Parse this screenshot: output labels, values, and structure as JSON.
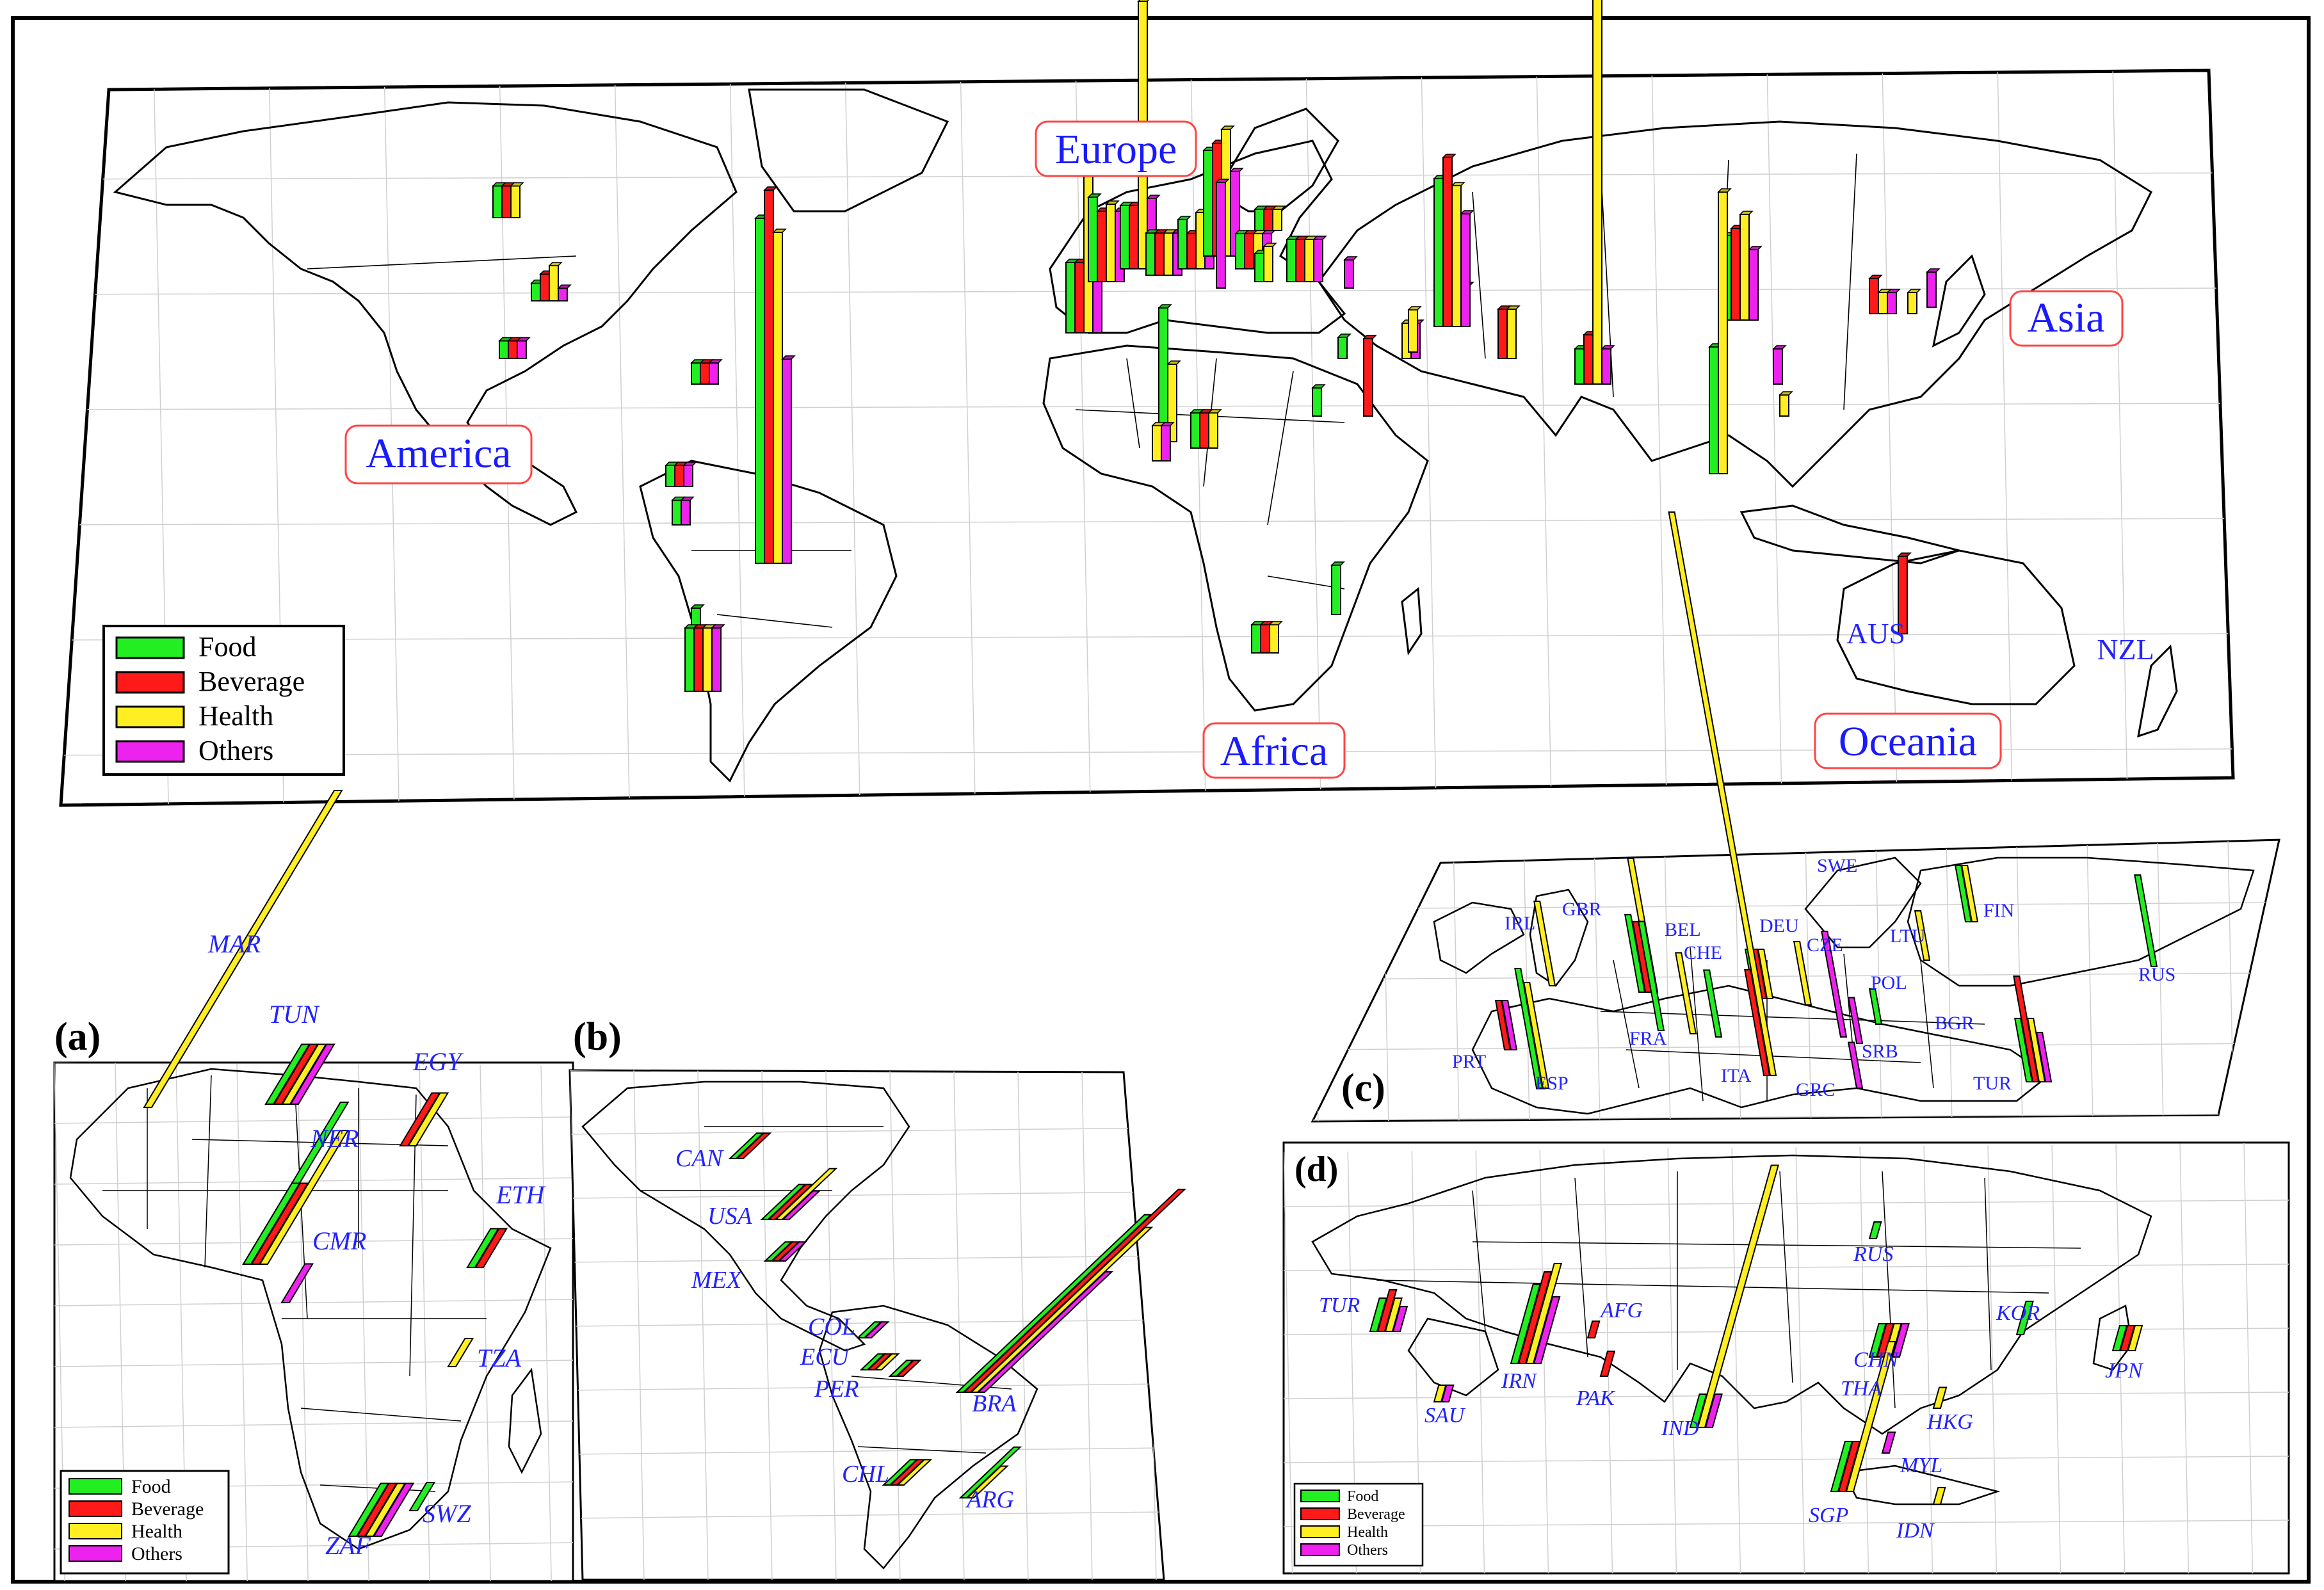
{
  "colors": {
    "Food": "#22ee22",
    "Beverage": "#ff1a1a",
    "Health": "#ffee22",
    "Others": "#ee22ee",
    "label": "#2222ff",
    "region_border": "#ff4444",
    "map_line": "#000000",
    "grid": "#d0d0d0"
  },
  "legend": [
    "Food",
    "Beverage",
    "Health",
    "Others"
  ],
  "main": {
    "regions": [
      "America",
      "Europe",
      "Asia",
      "Africa",
      "Oceania"
    ],
    "country_labels": [
      "AUS",
      "NZL"
    ],
    "bar_groups": [
      {
        "values": [
          0.45,
          0.45,
          0.45,
          0
        ]
      },
      {
        "values": [
          0.25,
          0.38,
          0.5,
          0.18
        ]
      },
      {
        "values": [
          0.25,
          0.25,
          0,
          0.25
        ]
      },
      {
        "values": [
          0.3,
          0.3,
          0,
          0.3
        ]
      },
      {
        "values": [
          0.3,
          0.3,
          0,
          0.3
        ]
      },
      {
        "values": [
          0.35,
          0,
          0,
          0.35
        ]
      },
      {
        "values": [
          4.9,
          5.3,
          4.7,
          2.9
        ]
      },
      {
        "values": [
          1.0,
          0,
          0.3,
          0
        ]
      },
      {
        "values": [
          0.9,
          0.9,
          0.9,
          0.9
        ]
      },
      {
        "values": [
          1.0,
          1.0,
          2.4,
          1.0
        ]
      },
      {
        "values": [
          1.2,
          1.0,
          1.1,
          1.0
        ]
      },
      {
        "values": [
          0.9,
          0.9,
          3.8,
          1.0
        ]
      },
      {
        "values": [
          0.6,
          0.6,
          0.6,
          0.6
        ]
      },
      {
        "values": [
          0.7,
          0.5,
          0.8,
          0.6
        ]
      },
      {
        "values": [
          1.5,
          1.6,
          1.8,
          1.2
        ]
      },
      {
        "values": [
          0.5,
          0.5,
          0.5,
          0.5
        ]
      },
      {
        "values": [
          0.3,
          0.3,
          0.3,
          0
        ]
      },
      {
        "values": [
          1.9,
          0,
          1.1,
          0
        ]
      },
      {
        "values": [
          0,
          0,
          0.5,
          0.5
        ]
      },
      {
        "values": [
          0.5,
          0.5,
          0.5,
          0
        ]
      },
      {
        "values": [
          0,
          0,
          0,
          1.5
        ]
      },
      {
        "values": [
          0.4,
          0,
          0.5,
          0
        ]
      },
      {
        "values": [
          0.6,
          0.6,
          0.6,
          0.6
        ]
      },
      {
        "values": [
          0.4,
          0,
          0,
          0
        ]
      },
      {
        "values": [
          0.3,
          0,
          0,
          0
        ]
      },
      {
        "values": [
          0,
          0,
          0,
          0.4
        ]
      },
      {
        "values": [
          0,
          1.1,
          0,
          0
        ]
      },
      {
        "values": [
          0.7,
          0,
          0,
          0
        ]
      },
      {
        "values": [
          0.4,
          0.4,
          0.4,
          0
        ]
      },
      {
        "values": [
          0,
          0,
          0.5,
          0.5
        ]
      },
      {
        "values": [
          0.4,
          0.5,
          0.6,
          0.4
        ]
      },
      {
        "values": [
          0,
          0,
          0.6,
          0
        ]
      },
      {
        "values": [
          2.1,
          2.4,
          2.0,
          1.6
        ]
      },
      {
        "values": [
          0,
          0.7,
          0.7,
          0
        ]
      },
      {
        "values": [
          0.5,
          0.7,
          5.6,
          0.5
        ]
      },
      {
        "values": [
          0.6,
          0,
          0,
          0
        ]
      },
      {
        "values": [
          1.2,
          1.3,
          1.5,
          1.0
        ]
      },
      {
        "values": [
          1.8,
          0,
          4.0,
          0
        ]
      },
      {
        "values": [
          0,
          0,
          0,
          0.5
        ]
      },
      {
        "values": [
          0,
          0,
          0.3,
          0
        ]
      },
      {
        "values": [
          0,
          0.5,
          0.3,
          0.3
        ]
      },
      {
        "values": [
          0,
          0,
          0.3,
          0
        ]
      },
      {
        "values": [
          0,
          0,
          0,
          0.5
        ]
      },
      {
        "values": [
          0,
          1.1,
          0,
          0
        ]
      }
    ]
  },
  "panel_a": {
    "letter": "(a)",
    "country_labels": [
      "MAR",
      "TUN",
      "EGY",
      "NER",
      "ETH",
      "CMR",
      "TZA",
      "SWZ",
      "ZAF"
    ],
    "bar_groups": [
      {
        "values": [
          0,
          0,
          9.0,
          0
        ]
      },
      {
        "values": [
          1.7,
          1.7,
          1.7,
          1.7
        ]
      },
      {
        "values": [
          0,
          1.5,
          1.5,
          0
        ]
      },
      {
        "values": [
          4.6,
          0,
          0,
          0
        ]
      },
      {
        "values": [
          2.3,
          2.3,
          3.8,
          0
        ]
      },
      {
        "values": [
          1.1,
          1.1,
          0,
          0
        ]
      },
      {
        "values": [
          0,
          0,
          0,
          1.1
        ]
      },
      {
        "values": [
          0,
          0,
          0.8,
          0
        ]
      },
      {
        "values": [
          0.8,
          0,
          0,
          0
        ]
      },
      {
        "values": [
          1.5,
          1.5,
          1.5,
          1.5
        ]
      }
    ]
  },
  "panel_b": {
    "letter": "(b)",
    "country_labels": [
      "CAN",
      "USA",
      "MEX",
      "COL",
      "ECU",
      "PER",
      "BRA",
      "CHL",
      "ARG"
    ],
    "bar_groups": [
      {
        "values": [
          0.8,
          0.8,
          0,
          0
        ]
      },
      {
        "values": [
          1.1,
          1.1,
          1.6,
          0.9
        ]
      },
      {
        "values": [
          0.6,
          0.6,
          0,
          0.6
        ]
      },
      {
        "values": [
          0.5,
          0,
          0,
          0.5
        ]
      },
      {
        "values": [
          0.5,
          0.5,
          0.5,
          0
        ]
      },
      {
        "values": [
          0.5,
          0.5,
          0,
          0
        ]
      },
      {
        "values": [
          5.6,
          6.4,
          5.2,
          3.8
        ]
      },
      {
        "values": [
          0.8,
          0.8,
          0.8,
          0
        ]
      },
      {
        "values": [
          1.6,
          0,
          1.0,
          0
        ]
      }
    ]
  },
  "panel_c": {
    "letter": "(c)",
    "country_labels": [
      "SWE",
      "IRL",
      "GBR",
      "BEL",
      "DEU",
      "CZE",
      "LTU",
      "FIN",
      "RUS",
      "CHE",
      "POL",
      "FRA",
      "BGR",
      "PRT",
      "ESP",
      "ITA",
      "SRB",
      "GRC",
      "TUR"
    ],
    "bar_groups": [
      {
        "values": [
          0,
          0,
          0,
          3.0
        ]
      },
      {
        "values": [
          0,
          0,
          2.4,
          0
        ]
      },
      {
        "values": [
          2.2,
          2.0,
          3.8,
          0
        ]
      },
      {
        "values": [
          0,
          0,
          2.3,
          0
        ]
      },
      {
        "values": [
          1.4,
          1.4,
          1.4,
          0
        ]
      },
      {
        "values": [
          0,
          0,
          1.8,
          0
        ]
      },
      {
        "values": [
          0,
          0,
          1.4,
          0
        ]
      },
      {
        "values": [
          1.6,
          0,
          1.6,
          0
        ]
      },
      {
        "values": [
          2.6,
          0,
          0,
          0
        ]
      },
      {
        "values": [
          1.9,
          0,
          0,
          0
        ]
      },
      {
        "values": [
          1.0,
          0,
          0,
          0
        ]
      },
      {
        "values": [
          3.1,
          0,
          0,
          0
        ]
      },
      {
        "values": [
          0,
          0,
          0,
          1.3
        ]
      },
      {
        "values": [
          0,
          1.4,
          0,
          1.4
        ]
      },
      {
        "values": [
          3.4,
          0,
          3.0,
          0
        ]
      },
      {
        "values": [
          0,
          3.0,
          16.0,
          0
        ]
      },
      {
        "values": [
          0,
          0,
          0,
          1.3
        ]
      },
      {
        "values": [
          1.8,
          3.0,
          1.8,
          1.4
        ]
      }
    ]
  },
  "panel_d": {
    "letter": "(d)",
    "country_labels": [
      "RUS",
      "TUR",
      "IRN",
      "AFG",
      "PAK",
      "SAU",
      "IND",
      "CHN",
      "THA",
      "KOR",
      "JPN",
      "HKG",
      "MYL",
      "SGP",
      "IDN"
    ],
    "bar_groups": [
      {
        "values": [
          0.4,
          0,
          0,
          0
        ]
      },
      {
        "values": [
          0.8,
          1.0,
          0.8,
          0.6
        ]
      },
      {
        "values": [
          1.9,
          2.2,
          2.4,
          1.6
        ]
      },
      {
        "values": [
          0,
          0.4,
          0,
          0
        ]
      },
      {
        "values": [
          0,
          0.6,
          0,
          0
        ]
      },
      {
        "values": [
          0,
          0,
          0.4,
          0.4
        ]
      },
      {
        "values": [
          0.8,
          0,
          6.3,
          0.8
        ]
      },
      {
        "values": [
          0.8,
          0.8,
          0.8,
          0.8
        ]
      },
      {
        "values": [
          1.2,
          1.2,
          3.6,
          0
        ]
      },
      {
        "values": [
          0.8,
          0,
          0,
          0
        ]
      },
      {
        "values": [
          0.6,
          0.6,
          0.6,
          0
        ]
      },
      {
        "values": [
          0,
          0,
          0.5,
          0
        ]
      },
      {
        "values": [
          0,
          0,
          0,
          0.5
        ]
      },
      {
        "values": [
          0,
          0,
          0.4,
          0
        ]
      }
    ]
  }
}
